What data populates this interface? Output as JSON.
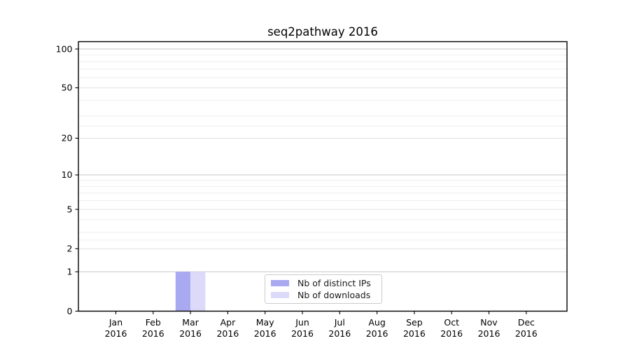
{
  "figure": {
    "title": "seq2pathway 2016"
  },
  "chart_data": {
    "type": "bar",
    "title": "seq2pathway 2016",
    "categories": [
      "Jan 2016",
      "Feb 2016",
      "Mar 2016",
      "Apr 2016",
      "May 2016",
      "Jun 2016",
      "Jul 2016",
      "Aug 2016",
      "Sep 2016",
      "Oct 2016",
      "Nov 2016",
      "Dec 2016"
    ],
    "series": [
      {
        "name": "Nb of distinct IPs",
        "color": "#a9a9f1",
        "values": [
          0,
          0,
          1,
          0,
          0,
          0,
          0,
          0,
          0,
          0,
          0,
          0
        ]
      },
      {
        "name": "Nb of downloads",
        "color": "#dbdbf9",
        "values": [
          0,
          0,
          1,
          0,
          0,
          0,
          0,
          0,
          0,
          0,
          0,
          0
        ]
      }
    ],
    "y_scale": "log1p",
    "ylim": [
      0,
      100
    ],
    "y_ticks": [
      0,
      1,
      2,
      5,
      10,
      20,
      50,
      100
    ],
    "y_emphasized_gridlines": [
      1,
      10,
      100
    ],
    "y_minor_gridlines": [
      2.5,
      3,
      4,
      6,
      7,
      8,
      9,
      25,
      30,
      40,
      60,
      70,
      80,
      90
    ],
    "grid": true,
    "legend_position": "bottom-center"
  },
  "colors": {
    "axis": "#000000",
    "grid_emphasized": "#c6c6c6",
    "grid_major": "#e2e2e2",
    "grid_minor": "#eeeeee",
    "tick_text": "#000000",
    "legend_border": "#cbcbcb",
    "background": "#ffffff"
  }
}
